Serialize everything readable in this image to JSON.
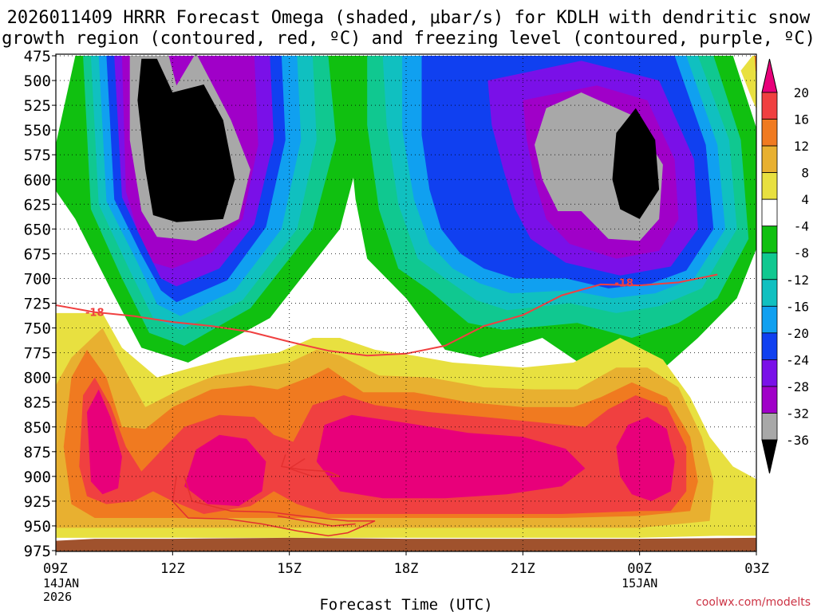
{
  "chart_data": {
    "type": "contour-cross-section",
    "title_line1": "2026011409 HRRR Forecast Omega (shaded, μbar/s) for KDLH with dendritic snow",
    "title_line2": "growth region (contoured, red, ºC) and freezing level (contoured, purple, ºC)",
    "xlabel": "Forecast Time (UTC)",
    "credit": "coolwx.com/modelts",
    "y_ticks": [
      "475",
      "500",
      "525",
      "550",
      "575",
      "600",
      "625",
      "650",
      "675",
      "700",
      "725",
      "750",
      "775",
      "800",
      "825",
      "850",
      "875",
      "900",
      "925",
      "950",
      "975"
    ],
    "x_ticks": [
      {
        "label": "09Z",
        "sub1": "14JAN",
        "sub2": "2026"
      },
      {
        "label": "12Z",
        "sub1": "",
        "sub2": ""
      },
      {
        "label": "15Z",
        "sub1": "",
        "sub2": ""
      },
      {
        "label": "18Z",
        "sub1": "",
        "sub2": ""
      },
      {
        "label": "21Z",
        "sub1": "",
        "sub2": ""
      },
      {
        "label": "00Z",
        "sub1": "15JAN",
        "sub2": ""
      },
      {
        "label": "03Z",
        "sub1": "",
        "sub2": ""
      }
    ],
    "colorbar": {
      "labels": [
        "20",
        "16",
        "12",
        "8",
        "4",
        "-4",
        "-8",
        "-12",
        "-16",
        "-20",
        "-24",
        "-28",
        "-32",
        "-36"
      ],
      "colors": [
        "#e8007a",
        "#f04040",
        "#f07a20",
        "#e8b030",
        "#e8e040",
        "#ffffff",
        "#10c010",
        "#10c890",
        "#10c0c0",
        "#10a0f0",
        "#1040f0",
        "#7a10e8",
        "#a000c8",
        "#a8a8a8",
        "#000000"
      ]
    },
    "contour_label": "-18",
    "dgz_isotherm_m18": [
      [
        9.0,
        727
      ],
      [
        10.0,
        734
      ],
      [
        11.0,
        738
      ],
      [
        12.0,
        744
      ],
      [
        13.0,
        748
      ],
      [
        14.0,
        754
      ],
      [
        15.0,
        764
      ],
      [
        16.0,
        773
      ],
      [
        17.0,
        778
      ],
      [
        18.0,
        776
      ],
      [
        19.0,
        768
      ],
      [
        20.0,
        748
      ],
      [
        21.0,
        737
      ],
      [
        22.0,
        717
      ],
      [
        23.0,
        706
      ],
      [
        24.0,
        707
      ],
      [
        25.0,
        704
      ],
      [
        26.0,
        696
      ]
    ]
  }
}
